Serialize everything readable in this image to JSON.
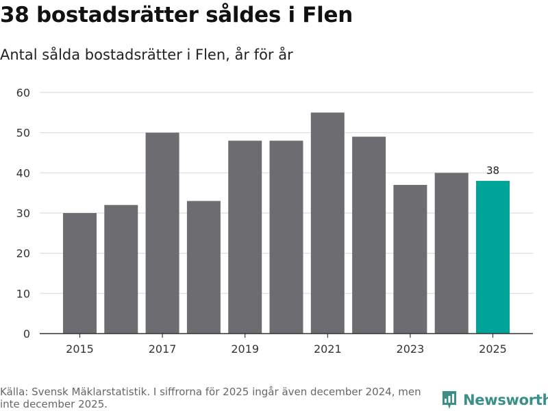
{
  "header": {
    "title": "38 bostadsrätter såldes i Flen",
    "subtitle": "Antal sålda bostadsrätter i Flen, år för år"
  },
  "chart_data": {
    "type": "bar",
    "title": "38 bostadsrätter såldes i Flen",
    "subtitle": "Antal sålda bostadsrätter i Flen, år för år",
    "categories": [
      "2015",
      "2016",
      "2017",
      "2018",
      "2019",
      "2020",
      "2021",
      "2022",
      "2023",
      "2024",
      "2025"
    ],
    "values": [
      30,
      32,
      50,
      33,
      48,
      48,
      55,
      49,
      37,
      40,
      38
    ],
    "x_tick_labels": [
      "2015",
      "2017",
      "2019",
      "2021",
      "2023",
      "2025"
    ],
    "y_ticks": [
      0,
      10,
      20,
      30,
      40,
      50,
      60
    ],
    "ylim": [
      0,
      60
    ],
    "xlabel": "",
    "ylabel": "",
    "grid": true,
    "highlight_category": "2025",
    "highlight_label": "38",
    "colors": {
      "bar": "#6d6c71",
      "highlight": "#00a398",
      "grid": "#dddddd",
      "axis": "#333333"
    }
  },
  "footer": {
    "source": "Källa: Svensk Mäklarstatistik. I siffrorna för 2025 ingår även december 2024, men inte december 2025.",
    "brand": "Newsworthy",
    "brand_icon": "newsworthy-logo-icon",
    "brand_color": "#3a8f87"
  }
}
